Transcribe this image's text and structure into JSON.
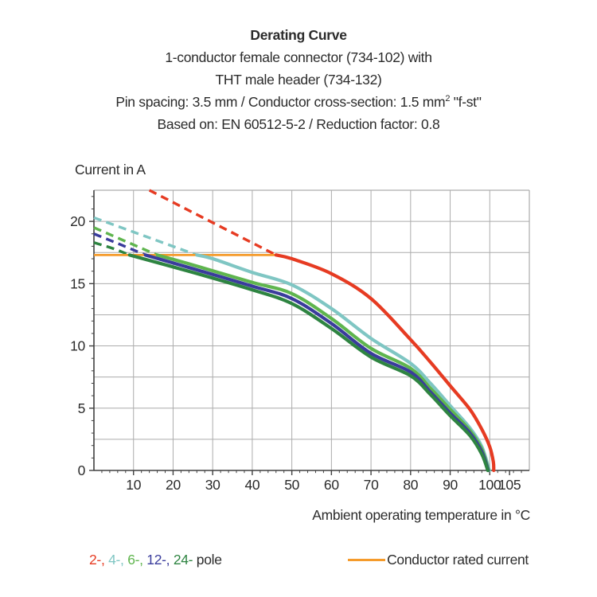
{
  "header": {
    "title": "Derating Curve",
    "line2": "1-conductor female connector (734-102) with",
    "line3": "THT male header (734-132)",
    "line4_prefix": "Pin spacing: 3.5 mm / Conductor cross-section: 1.5 mm",
    "line4_sup": "2",
    "line4_suffix": " \"f-st\"",
    "line5": "Based on: EN 60512-5-2 / Reduction factor: 0.8"
  },
  "colors": {
    "grid": "#acacac",
    "axis": "#404040",
    "text": "#2b2b2b",
    "rated": "#f59b2b"
  },
  "chart_data": {
    "type": "line",
    "title": "Derating Curve",
    "ylabel": "Current in A",
    "xlabel": "Ambient operating temperature in °C",
    "xlim": [
      0,
      110
    ],
    "ylim": [
      0,
      22.5
    ],
    "x_grid_step": 10,
    "y_grid_step": 2.5,
    "x_minor_step": 2,
    "y_minor_step": 1,
    "grid": true,
    "x_ticks": [
      {
        "value": 10,
        "label": "10"
      },
      {
        "value": 20,
        "label": "20"
      },
      {
        "value": 30,
        "label": "30"
      },
      {
        "value": 40,
        "label": "40"
      },
      {
        "value": 50,
        "label": "50"
      },
      {
        "value": 60,
        "label": "60"
      },
      {
        "value": 70,
        "label": "70"
      },
      {
        "value": 80,
        "label": "80"
      },
      {
        "value": 90,
        "label": "90"
      },
      {
        "value": 100,
        "label": "100"
      },
      {
        "value": 105,
        "label": "105"
      }
    ],
    "y_ticks": [
      {
        "value": 0,
        "label": "0"
      },
      {
        "value": 5,
        "label": "5"
      },
      {
        "value": 10,
        "label": "10"
      },
      {
        "value": 15,
        "label": "15"
      },
      {
        "value": 20,
        "label": "20"
      }
    ],
    "rated_current": {
      "label": "Conductor rated current",
      "value": 17.3,
      "x_start": 0,
      "x_end": 46,
      "color": "#f59b2b"
    },
    "series": [
      {
        "name": "2-pole",
        "color": "#e63b22",
        "dashed": [
          [
            14,
            22.5
          ],
          [
            22,
            21.2
          ],
          [
            30,
            19.9
          ],
          [
            38,
            18.6
          ],
          [
            46,
            17.3
          ]
        ],
        "solid": [
          [
            46,
            17.3
          ],
          [
            50,
            17.0
          ],
          [
            60,
            15.8
          ],
          [
            70,
            13.8
          ],
          [
            80,
            10.5
          ],
          [
            85,
            8.7
          ],
          [
            90,
            6.8
          ],
          [
            95,
            4.9
          ],
          [
            98,
            3.3
          ],
          [
            100,
            1.9
          ],
          [
            100.9,
            0.7
          ],
          [
            101,
            0
          ]
        ]
      },
      {
        "name": "4-pole",
        "color": "#7fc6c3",
        "dashed": [
          [
            0,
            20.3
          ],
          [
            13,
            18.8
          ],
          [
            26,
            17.3
          ]
        ],
        "solid": [
          [
            26,
            17.3
          ],
          [
            30,
            17.0
          ],
          [
            40,
            15.9
          ],
          [
            50,
            14.9
          ],
          [
            60,
            13.0
          ],
          [
            70,
            10.6
          ],
          [
            80,
            8.6
          ],
          [
            85,
            7.0
          ],
          [
            90,
            5.2
          ],
          [
            95,
            3.4
          ],
          [
            98,
            1.9
          ],
          [
            99.9,
            0
          ]
        ]
      },
      {
        "name": "6-pole",
        "color": "#5fb54e",
        "dashed": [
          [
            0,
            19.5
          ],
          [
            8,
            18.4
          ],
          [
            16,
            17.3
          ]
        ],
        "solid": [
          [
            16,
            17.3
          ],
          [
            25,
            16.5
          ],
          [
            40,
            15.1
          ],
          [
            50,
            14.2
          ],
          [
            60,
            12.2
          ],
          [
            70,
            9.8
          ],
          [
            80,
            8.2
          ],
          [
            85,
            6.6
          ],
          [
            90,
            4.9
          ],
          [
            95,
            3.2
          ],
          [
            98,
            1.7
          ],
          [
            99.7,
            0
          ]
        ]
      },
      {
        "name": "12-pole",
        "color": "#3a3c9c",
        "dashed": [
          [
            0,
            19.0
          ],
          [
            7,
            18.1
          ],
          [
            13,
            17.3
          ]
        ],
        "solid": [
          [
            13,
            17.3
          ],
          [
            25,
            16.2
          ],
          [
            40,
            14.8
          ],
          [
            50,
            13.8
          ],
          [
            60,
            11.8
          ],
          [
            70,
            9.4
          ],
          [
            80,
            7.9
          ],
          [
            85,
            6.3
          ],
          [
            90,
            4.6
          ],
          [
            95,
            3.0
          ],
          [
            98,
            1.5
          ],
          [
            99.6,
            0
          ]
        ]
      },
      {
        "name": "24-pole",
        "color": "#2e8441",
        "dashed": [
          [
            0,
            18.3
          ],
          [
            5,
            17.8
          ],
          [
            9,
            17.3
          ]
        ],
        "solid": [
          [
            9,
            17.3
          ],
          [
            25,
            15.9
          ],
          [
            40,
            14.5
          ],
          [
            50,
            13.4
          ],
          [
            60,
            11.4
          ],
          [
            70,
            9.1
          ],
          [
            80,
            7.6
          ],
          [
            85,
            6.1
          ],
          [
            90,
            4.4
          ],
          [
            95,
            2.8
          ],
          [
            98,
            1.3
          ],
          [
            99.5,
            0
          ]
        ]
      }
    ],
    "legend_position": "bottom"
  },
  "legend": {
    "pole_items": [
      {
        "text": "2-",
        "color": "#e63b22"
      },
      {
        "text": "4-",
        "color": "#7fc6c3"
      },
      {
        "text": "6-",
        "color": "#5fb54e"
      },
      {
        "text": "12-",
        "color": "#3a3c9c"
      },
      {
        "text": "24-",
        "color": "#2e8441"
      }
    ],
    "pole_suffix": "pole",
    "rated_label": "Conductor rated current"
  }
}
